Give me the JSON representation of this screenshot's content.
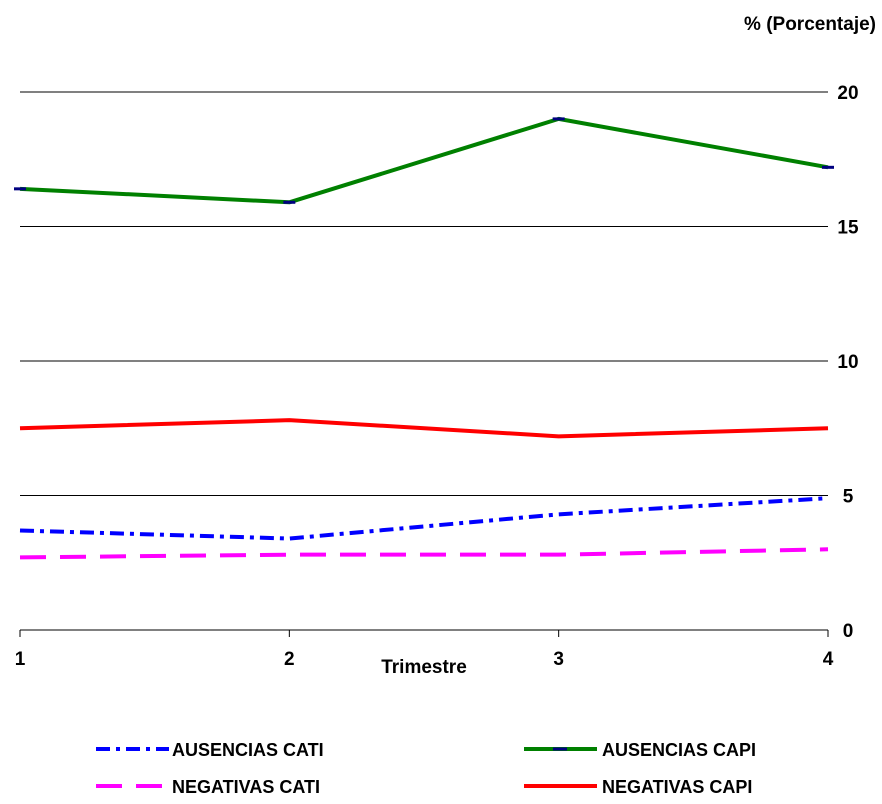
{
  "chart_data": {
    "type": "line",
    "title": "",
    "xlabel": "Trimestre",
    "ylabel": "% (Porcentaje)",
    "categories": [
      "1",
      "2",
      "3",
      "4"
    ],
    "yticks": [
      "0",
      "5",
      "10",
      "15",
      "20"
    ],
    "ylim": [
      0,
      20
    ],
    "grid": "horizontal",
    "y_axis_position": "right",
    "legend_position": "bottom",
    "series": [
      {
        "name": "AUSENCIAS CATI",
        "values": [
          3.7,
          3.4,
          4.3,
          4.9
        ],
        "color": "#0000FF",
        "style": "dash-dot"
      },
      {
        "name": "AUSENCIAS CAPI",
        "values": [
          16.4,
          15.9,
          19.0,
          17.2
        ],
        "color": "#008000",
        "style": "solid"
      },
      {
        "name": "NEGATIVAS CATI",
        "values": [
          2.7,
          2.8,
          2.8,
          3.0
        ],
        "color": "#FF00FF",
        "style": "long-dash"
      },
      {
        "name": "NEGATIVAS CAPI",
        "values": [
          7.5,
          7.8,
          7.2,
          7.5
        ],
        "color": "#FF0000",
        "style": "solid"
      }
    ]
  }
}
